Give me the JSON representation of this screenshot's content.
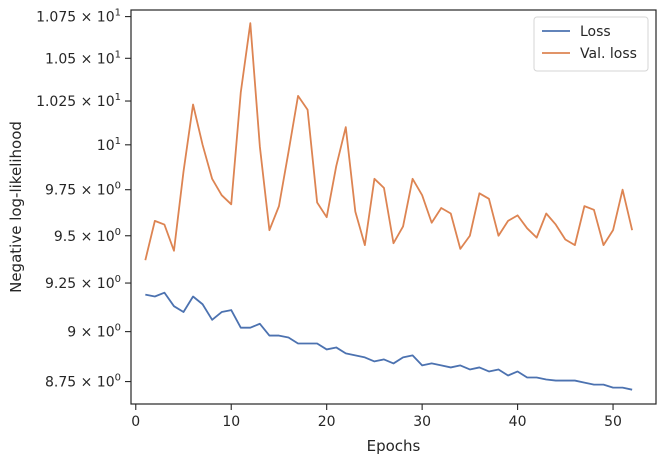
{
  "chart_data": {
    "type": "line",
    "xlabel": "Epochs",
    "ylabel": "Negative log-likelihood",
    "xlim": [
      -0.5,
      54.5
    ],
    "ylim": [
      8.64,
      10.79
    ],
    "yscale": "log",
    "grid": false,
    "legend_position": "top-right",
    "x_ticks": [
      0,
      10,
      20,
      30,
      40,
      50
    ],
    "x_tick_labels": [
      "0",
      "10",
      "20",
      "30",
      "40",
      "50"
    ],
    "y_ticks": [
      8.75,
      9.0,
      9.25,
      9.5,
      9.75,
      10.0,
      10.25,
      10.5,
      10.75
    ],
    "y_tick_labels": [
      {
        "mantissa": "8.75",
        "base": "10",
        "exp": "0"
      },
      {
        "mantissa": "9",
        "base": "10",
        "exp": "0"
      },
      {
        "mantissa": "9.25",
        "base": "10",
        "exp": "0"
      },
      {
        "mantissa": "9.5",
        "base": "10",
        "exp": "0"
      },
      {
        "mantissa": "9.75",
        "base": "10",
        "exp": "0"
      },
      {
        "mantissa": "",
        "base": "10",
        "exp": "1"
      },
      {
        "mantissa": "1.025",
        "base": "10",
        "exp": "1"
      },
      {
        "mantissa": "1.05",
        "base": "10",
        "exp": "1"
      },
      {
        "mantissa": "1.075",
        "base": "10",
        "exp": "1"
      }
    ],
    "x": [
      1,
      2,
      3,
      4,
      5,
      6,
      7,
      8,
      9,
      10,
      11,
      12,
      13,
      14,
      15,
      16,
      17,
      18,
      19,
      20,
      21,
      22,
      23,
      24,
      25,
      26,
      27,
      28,
      29,
      30,
      31,
      32,
      33,
      34,
      35,
      36,
      37,
      38,
      39,
      40,
      41,
      42,
      43,
      44,
      45,
      46,
      47,
      48,
      49,
      50,
      51,
      52
    ],
    "series": [
      {
        "name": "Loss",
        "color": "#4c72b0",
        "values": [
          9.19,
          9.18,
          9.2,
          9.13,
          9.1,
          9.18,
          9.14,
          9.06,
          9.1,
          9.11,
          9.02,
          9.02,
          9.04,
          8.98,
          8.98,
          8.97,
          8.94,
          8.94,
          8.94,
          8.91,
          8.92,
          8.89,
          8.88,
          8.87,
          8.85,
          8.86,
          8.84,
          8.87,
          8.88,
          8.83,
          8.84,
          8.83,
          8.82,
          8.83,
          8.81,
          8.82,
          8.8,
          8.81,
          8.78,
          8.8,
          8.77,
          8.77,
          8.76,
          8.755,
          8.755,
          8.755,
          8.745,
          8.735,
          8.735,
          8.72,
          8.72,
          8.71
        ]
      },
      {
        "name": "Val. loss",
        "color": "#dd8452",
        "values": [
          9.37,
          9.58,
          9.56,
          9.42,
          9.85,
          10.23,
          10.0,
          9.81,
          9.72,
          9.67,
          10.3,
          10.71,
          9.99,
          9.53,
          9.66,
          9.96,
          10.28,
          10.2,
          9.68,
          9.6,
          9.88,
          10.1,
          9.63,
          9.45,
          9.81,
          9.76,
          9.46,
          9.55,
          9.81,
          9.72,
          9.57,
          9.65,
          9.62,
          9.43,
          9.5,
          9.73,
          9.7,
          9.5,
          9.58,
          9.61,
          9.54,
          9.49,
          9.62,
          9.56,
          9.48,
          9.45,
          9.66,
          9.64,
          9.45,
          9.53,
          9.75,
          9.53
        ]
      }
    ]
  }
}
